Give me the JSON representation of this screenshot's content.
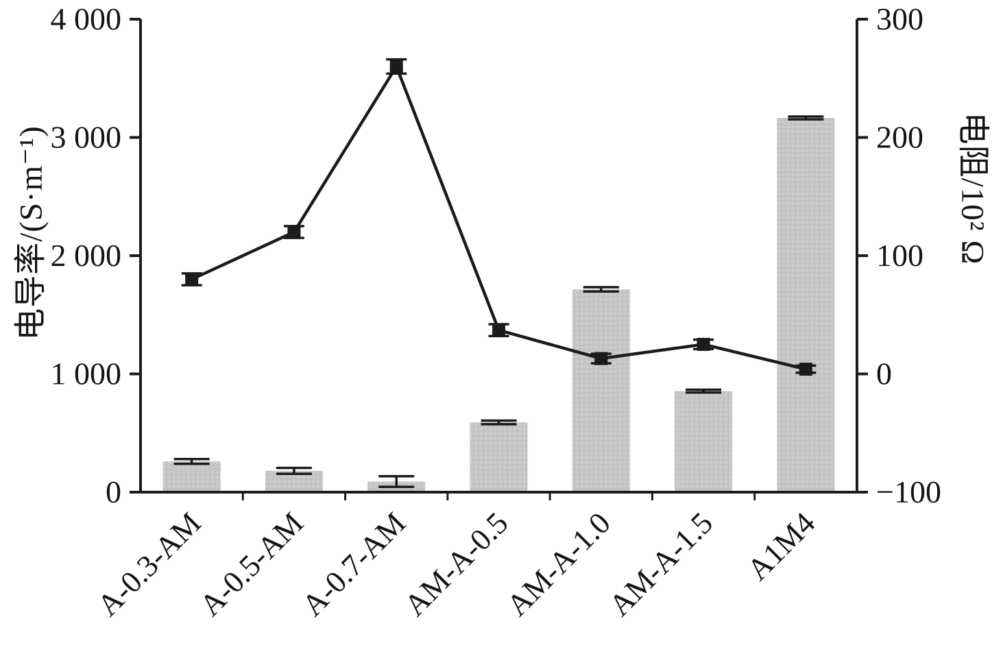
{
  "chart_data": {
    "type": "combo",
    "categories": [
      "A-0.3-AM",
      "A-0.5-AM",
      "A-0.7-AM",
      "AM-A-0.5",
      "AM-A-1.0",
      "AM-A-1.5",
      "A1M4"
    ],
    "series": [
      {
        "name": "electrical-conductivity-bars",
        "type": "bar",
        "axis": "left",
        "values": [
          260,
          180,
          90,
          590,
          1715,
          855,
          3165
        ],
        "errors": [
          20,
          25,
          45,
          15,
          18,
          12,
          12
        ],
        "color": "#c6c6c6"
      },
      {
        "name": "resistance-line",
        "type": "line",
        "axis": "right",
        "values": [
          80,
          120,
          260,
          37,
          13,
          25,
          4
        ],
        "errors": [
          5,
          5,
          6,
          5,
          4,
          4,
          3
        ],
        "color": "#1b1b1b",
        "marker": "square"
      }
    ],
    "left_axis": {
      "label": "电导率/(S·m⁻¹)",
      "min": 0,
      "max": 4000,
      "ticks": [
        {
          "v": 0,
          "label": "0"
        },
        {
          "v": 1000,
          "label": "1 000"
        },
        {
          "v": 2000,
          "label": "2 000"
        },
        {
          "v": 3000,
          "label": "3 000"
        },
        {
          "v": 4000,
          "label": "4 000"
        }
      ]
    },
    "right_axis": {
      "label": "电阻/10² Ω",
      "min": -100,
      "max": 300,
      "ticks": [
        {
          "v": -100,
          "label": "−100"
        },
        {
          "v": 0,
          "label": "0"
        },
        {
          "v": 100,
          "label": "100"
        },
        {
          "v": 200,
          "label": "200"
        },
        {
          "v": 300,
          "label": "300"
        }
      ]
    },
    "grid": false,
    "legend": "none",
    "title": "",
    "axis_color": "#1b1b1b"
  }
}
